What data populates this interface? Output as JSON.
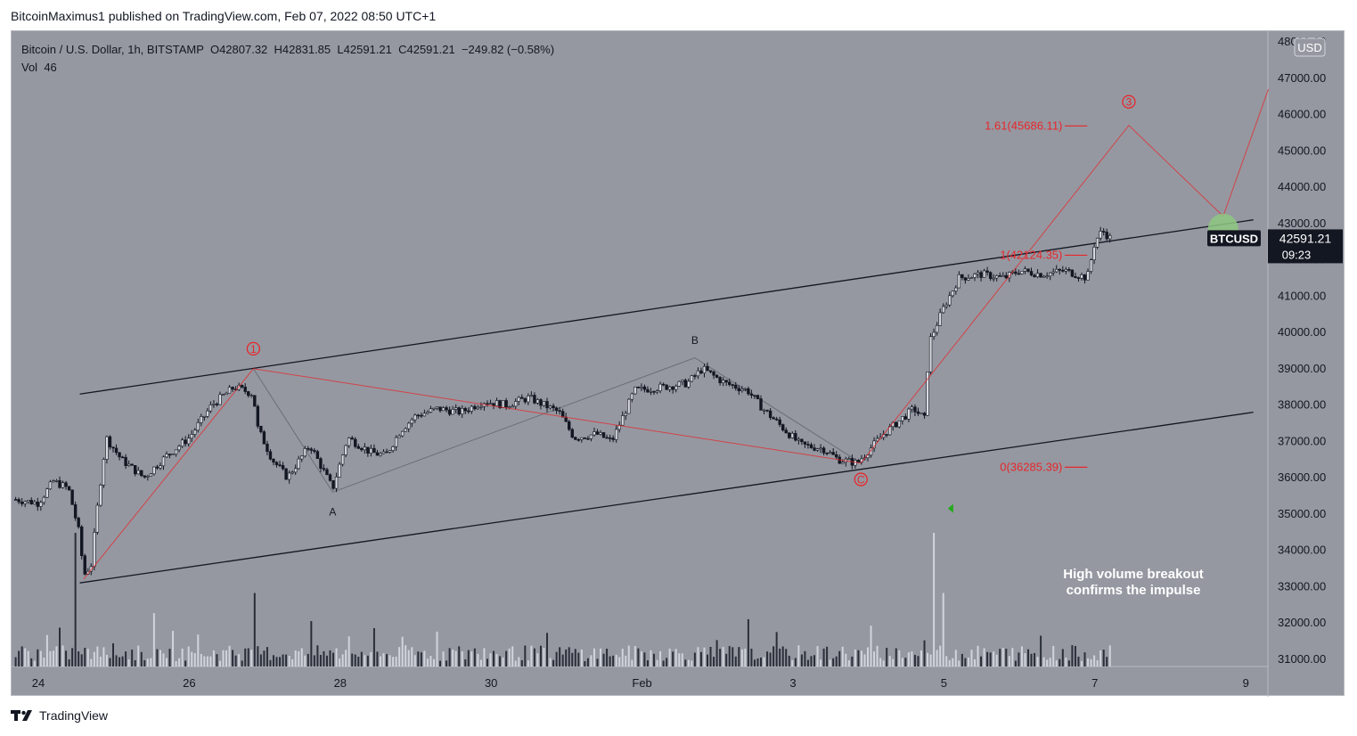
{
  "header": {
    "publisher_line": "BitcoinMaximus1 published on TradingView.com, Feb 07, 2022 08:50 UTC+1"
  },
  "legend": {
    "symbol": "Bitcoin / U.S. Dollar, 1h, BITSTAMP",
    "o_label": "O",
    "o_value": "42807.32",
    "h_label": "H",
    "h_value": "42831.85",
    "l_label": "L",
    "l_value": "42591.21",
    "c_label": "C",
    "c_value": "42591.21",
    "change": "−249.82 (−0.58%)",
    "vol_label": "Vol",
    "vol_value": "46"
  },
  "footer": {
    "brand": "TradingView"
  },
  "colors": {
    "background": "#9598a1",
    "wave": "#e8262a",
    "candle": "#131722",
    "channel": "#131722",
    "highlight_circle": "#8ec780",
    "volume_dark": "#2a2e39",
    "volume_light": "#d1d4dc"
  },
  "chart_data": {
    "type": "candlestick",
    "symbol": "BTCUSD",
    "timeframe": "1h",
    "currency": "USD",
    "ylim": [
      30700,
      48000
    ],
    "y_ticks": [
      "31000.00",
      "32000.00",
      "33000.00",
      "34000.00",
      "35000.00",
      "36000.00",
      "37000.00",
      "38000.00",
      "39000.00",
      "40000.00",
      "41000.00",
      "42000.00",
      "43000.00",
      "44000.00",
      "45000.00",
      "46000.00",
      "47000.00",
      "48000.00"
    ],
    "x_ticks": [
      {
        "label": "24",
        "day": 0
      },
      {
        "label": "26",
        "day": 2
      },
      {
        "label": "28",
        "day": 4
      },
      {
        "label": "30",
        "day": 6
      },
      {
        "label": "Feb",
        "day": 8
      },
      {
        "label": "3",
        "day": 10
      },
      {
        "label": "5",
        "day": 12
      },
      {
        "label": "7",
        "day": 14
      },
      {
        "label": "9",
        "day": 16
      }
    ],
    "last_price": {
      "label": "BTCUSD",
      "value": "42591.21",
      "countdown": "09:23"
    },
    "price_path": [
      [
        -0.3,
        35400
      ],
      [
        0.0,
        35300
      ],
      [
        0.2,
        35900
      ],
      [
        0.4,
        35700
      ],
      [
        0.55,
        34400
      ],
      [
        0.6,
        33300
      ],
      [
        0.7,
        33600
      ],
      [
        0.8,
        35500
      ],
      [
        0.9,
        37100
      ],
      [
        1.1,
        36500
      ],
      [
        1.4,
        36000
      ],
      [
        1.7,
        36600
      ],
      [
        2.0,
        37100
      ],
      [
        2.3,
        38000
      ],
      [
        2.6,
        38500
      ],
      [
        2.85,
        38300
      ],
      [
        2.9,
        37400
      ],
      [
        3.1,
        36500
      ],
      [
        3.3,
        36000
      ],
      [
        3.6,
        36900
      ],
      [
        3.9,
        35700
      ],
      [
        4.1,
        37100
      ],
      [
        4.4,
        36700
      ],
      [
        4.6,
        36600
      ],
      [
        4.8,
        37300
      ],
      [
        5.0,
        37700
      ],
      [
        5.3,
        37900
      ],
      [
        5.6,
        37800
      ],
      [
        5.9,
        38100
      ],
      [
        6.2,
        38000
      ],
      [
        6.5,
        38200
      ],
      [
        6.9,
        37800
      ],
      [
        7.1,
        37100
      ],
      [
        7.4,
        37200
      ],
      [
        7.6,
        37000
      ],
      [
        7.9,
        38400
      ],
      [
        8.3,
        38500
      ],
      [
        8.6,
        38600
      ],
      [
        8.8,
        39000
      ],
      [
        9.1,
        38600
      ],
      [
        9.4,
        38400
      ],
      [
        9.6,
        37900
      ],
      [
        9.8,
        37500
      ],
      [
        10.1,
        36900
      ],
      [
        10.4,
        36800
      ],
      [
        10.6,
        36500
      ],
      [
        10.85,
        36400
      ],
      [
        11.2,
        37200
      ],
      [
        11.6,
        37900
      ],
      [
        11.75,
        37600
      ],
      [
        11.8,
        39700
      ],
      [
        12.0,
        40700
      ],
      [
        12.2,
        41500
      ],
      [
        12.5,
        41600
      ],
      [
        12.8,
        41500
      ],
      [
        13.0,
        41700
      ],
      [
        13.3,
        41600
      ],
      [
        13.6,
        41700
      ],
      [
        13.9,
        41500
      ],
      [
        14.0,
        42500
      ],
      [
        14.1,
        42800
      ],
      [
        14.2,
        42600
      ]
    ],
    "volume": {
      "spikes": [
        {
          "day": 0.5,
          "value": 1.0
        },
        {
          "day": 2.85,
          "value": 0.55
        },
        {
          "day": 11.85,
          "value": 1.0
        },
        {
          "day": 12.0,
          "value": 0.55
        }
      ],
      "series_color_note": "dark = down candle, light = up candle"
    },
    "channel": {
      "upper": [
        [
          0.55,
          38300
        ],
        [
          16.1,
          43100
        ]
      ],
      "lower": [
        [
          0.55,
          33100
        ],
        [
          16.1,
          37800
        ]
      ]
    },
    "wave_path": [
      [
        0.6,
        33200
      ],
      [
        2.85,
        39000
      ],
      [
        10.9,
        36400
      ],
      [
        14.45,
        45700
      ],
      [
        15.7,
        43200
      ],
      [
        16.3,
        46700
      ]
    ],
    "abc_path": [
      [
        2.85,
        39000
      ],
      [
        3.9,
        35600
      ],
      [
        8.7,
        39300
      ],
      [
        10.9,
        36400
      ]
    ],
    "wave_labels": [
      {
        "text": "1",
        "day": 2.85,
        "price": 39550,
        "style": "circle-red"
      },
      {
        "text": "3",
        "day": 14.45,
        "price": 46350,
        "style": "circle-red"
      },
      {
        "text": "C",
        "day": 10.9,
        "price": 35950,
        "style": "circle-red"
      },
      {
        "text": "A",
        "day": 3.9,
        "price": 35050,
        "style": "black"
      },
      {
        "text": "B",
        "day": 8.7,
        "price": 39780,
        "style": "black"
      }
    ],
    "fib_levels": [
      {
        "label": "1.61(45686.11)",
        "price": 45686.11
      },
      {
        "label": "1(42124.35)",
        "price": 42124.35
      },
      {
        "label": "0(36285.39)",
        "price": 36285.39
      }
    ],
    "highlight_circle": {
      "day": 15.7,
      "price": 42850
    },
    "volume_marker": {
      "day": 12.1,
      "price": 35150
    },
    "annotation": {
      "lines": [
        "High volume breakout",
        "confirms the impulse"
      ]
    }
  }
}
